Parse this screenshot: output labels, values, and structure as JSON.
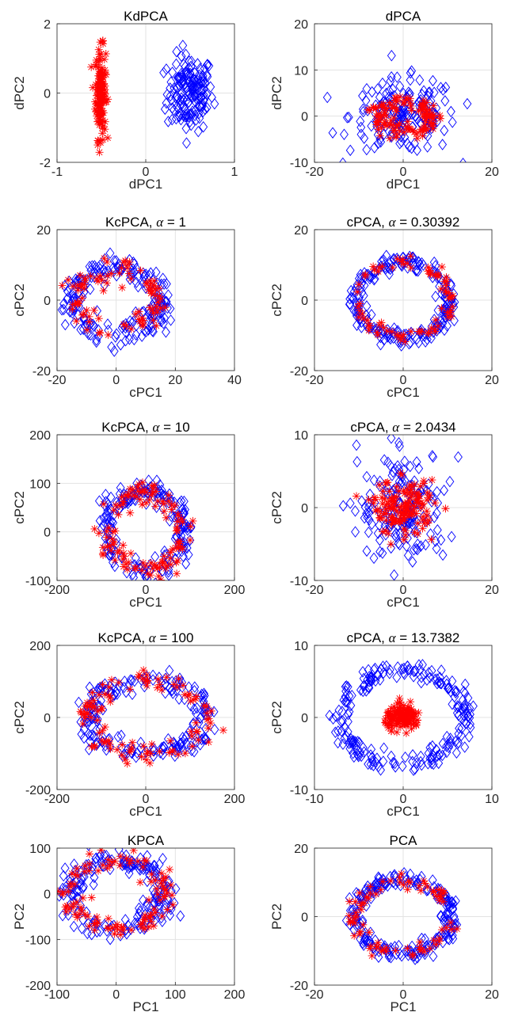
{
  "chart_data": [
    {
      "type": "scatter",
      "title": "KdPCA",
      "title_symbol": "",
      "title_suffix": "",
      "xlabel": "dPC1",
      "ylabel": "dPC2",
      "xlim": [
        -1,
        1
      ],
      "ylim": [
        -2,
        2
      ],
      "xticks": [
        -1,
        0,
        1
      ],
      "yticks": [
        -2,
        0,
        2
      ],
      "grid": true,
      "series": [
        {
          "marker": "diamond",
          "color": "#0000ff",
          "shape": "cluster",
          "cx": 0.5,
          "cy": 0,
          "sx": 0.13,
          "sy": 0.55,
          "n": 160
        },
        {
          "marker": "star",
          "color": "#ff0000",
          "shape": "cluster",
          "cx": -0.51,
          "cy": 0,
          "sx": 0.03,
          "sy": 0.65,
          "n": 140
        }
      ]
    },
    {
      "type": "scatter",
      "title": "dPCA",
      "title_symbol": "",
      "title_suffix": "",
      "xlabel": "dPC1",
      "ylabel": "dPC2",
      "xlim": [
        -20,
        20
      ],
      "ylim": [
        -10,
        20
      ],
      "xticks": [
        -20,
        0,
        20
      ],
      "yticks": [
        -10,
        0,
        10,
        20
      ],
      "grid": true,
      "series": [
        {
          "marker": "diamond",
          "color": "#0000ff",
          "shape": "cluster",
          "cx": 0,
          "cy": 0,
          "sx": 6,
          "sy": 4,
          "n": 180
        },
        {
          "marker": "star",
          "color": "#ff0000",
          "shape": "ring",
          "cx": 0,
          "cy": 0,
          "rx": 6,
          "ry": 3,
          "jit": 1.2,
          "n": 120
        }
      ]
    },
    {
      "type": "scatter",
      "title": "KcPCA, ",
      "title_symbol": "α",
      "title_suffix": " = 1",
      "xlabel": "cPC1",
      "ylabel": "cPC2",
      "xlim": [
        -20,
        40
      ],
      "ylim": [
        -20,
        20
      ],
      "xticks": [
        -20,
        0,
        20,
        40
      ],
      "yticks": [
        -20,
        0,
        20
      ],
      "grid": true,
      "series": [
        {
          "marker": "diamond",
          "color": "#0000ff",
          "shape": "ring",
          "cx": 0,
          "cy": 0,
          "rx": 15,
          "ry": 9,
          "jit": 2.0,
          "n": 200
        },
        {
          "marker": "star",
          "color": "#ff0000",
          "shape": "ring",
          "cx": 0,
          "cy": 0,
          "rx": 14,
          "ry": 8,
          "jit": 2.0,
          "n": 90
        }
      ]
    },
    {
      "type": "scatter",
      "title": "cPCA, ",
      "title_symbol": "α",
      "title_suffix": " = 0.30392",
      "xlabel": "cPC1",
      "ylabel": "cPC2",
      "xlim": [
        -20,
        20
      ],
      "ylim": [
        -20,
        20
      ],
      "xticks": [
        -20,
        0,
        20
      ],
      "yticks": [
        -20,
        0,
        20
      ],
      "grid": true,
      "series": [
        {
          "marker": "diamond",
          "color": "#0000ff",
          "shape": "ring",
          "cx": 0,
          "cy": 0,
          "rx": 10.5,
          "ry": 10.5,
          "jit": 1.0,
          "n": 220
        },
        {
          "marker": "star",
          "color": "#ff0000",
          "shape": "ring",
          "cx": 0,
          "cy": 0,
          "rx": 10.5,
          "ry": 10.5,
          "jit": 1.0,
          "n": 80
        }
      ]
    },
    {
      "type": "scatter",
      "title": "KcPCA, ",
      "title_symbol": "α",
      "title_suffix": " = 10",
      "xlabel": "cPC1",
      "ylabel": "cPC2",
      "xlim": [
        -200,
        200
      ],
      "ylim": [
        -100,
        200
      ],
      "xticks": [
        -200,
        0,
        200
      ],
      "yticks": [
        -100,
        0,
        100,
        200
      ],
      "grid": true,
      "series": [
        {
          "marker": "diamond",
          "color": "#0000ff",
          "shape": "ring",
          "cx": 0,
          "cy": 0,
          "rx": 85,
          "ry": 80,
          "jit": 12,
          "n": 200
        },
        {
          "marker": "star",
          "color": "#ff0000",
          "shape": "ring",
          "cx": 0,
          "cy": 0,
          "rx": 85,
          "ry": 80,
          "jit": 12,
          "n": 120
        }
      ]
    },
    {
      "type": "scatter",
      "title": "cPCA, ",
      "title_symbol": "α",
      "title_suffix": " = 2.0434",
      "xlabel": "cPC1",
      "ylabel": "cPC2",
      "xlim": [
        -20,
        20
      ],
      "ylim": [
        -10,
        10
      ],
      "xticks": [
        -20,
        0,
        20
      ],
      "yticks": [
        -10,
        0,
        10
      ],
      "grid": true,
      "series": [
        {
          "marker": "diamond",
          "color": "#0000ff",
          "shape": "cluster",
          "cx": 0,
          "cy": 0,
          "sx": 5,
          "sy": 4,
          "n": 180
        },
        {
          "marker": "star",
          "color": "#ff0000",
          "shape": "cluster",
          "cx": 0,
          "cy": 0,
          "sx": 3.5,
          "sy": 1.8,
          "n": 140
        }
      ]
    },
    {
      "type": "scatter",
      "title": "KcPCA, ",
      "title_symbol": "α",
      "title_suffix": " = 100",
      "xlabel": "cPC1",
      "ylabel": "cPC2",
      "xlim": [
        -200,
        200
      ],
      "ylim": [
        -200,
        200
      ],
      "xticks": [
        -200,
        0,
        200
      ],
      "yticks": [
        -200,
        0,
        200
      ],
      "grid": true,
      "series": [
        {
          "marker": "diamond",
          "color": "#0000ff",
          "shape": "ring",
          "cx": 0,
          "cy": 0,
          "rx": 130,
          "ry": 100,
          "jit": 15,
          "n": 200
        },
        {
          "marker": "star",
          "color": "#ff0000",
          "shape": "ring",
          "cx": 0,
          "cy": 0,
          "rx": 130,
          "ry": 100,
          "jit": 15,
          "n": 110
        }
      ]
    },
    {
      "type": "scatter",
      "title": "cPCA, ",
      "title_symbol": "α",
      "title_suffix": " = 13.7382",
      "xlabel": "cPC1",
      "ylabel": "cPC2",
      "xlim": [
        -10,
        10
      ],
      "ylim": [
        -10,
        10
      ],
      "xticks": [
        -10,
        0,
        10
      ],
      "yticks": [
        -10,
        0,
        10
      ],
      "grid": true,
      "series": [
        {
          "marker": "diamond",
          "color": "#0000ff",
          "shape": "ring",
          "cx": 0,
          "cy": 0,
          "rx": 7,
          "ry": 6.5,
          "jit": 0.6,
          "n": 220
        },
        {
          "marker": "star",
          "color": "#ff0000",
          "shape": "cluster",
          "cx": 0,
          "cy": 0,
          "sx": 1.0,
          "sy": 0.8,
          "n": 140
        }
      ]
    },
    {
      "type": "scatter",
      "title": "KPCA",
      "title_symbol": "",
      "title_suffix": "",
      "xlabel": "PC1",
      "ylabel": "PC2",
      "xlim": [
        -100,
        200
      ],
      "ylim": [
        -200,
        100
      ],
      "xticks": [
        -100,
        0,
        100,
        200
      ],
      "yticks": [
        -200,
        -100,
        0,
        100
      ],
      "grid": true,
      "series": [
        {
          "marker": "diamond",
          "color": "#0000ff",
          "shape": "ring",
          "cx": 0,
          "cy": 0,
          "rx": 80,
          "ry": 75,
          "jit": 12,
          "n": 200
        },
        {
          "marker": "star",
          "color": "#ff0000",
          "shape": "ring",
          "cx": 0,
          "cy": 0,
          "rx": 80,
          "ry": 75,
          "jit": 12,
          "n": 110
        }
      ]
    },
    {
      "type": "scatter",
      "title": "PCA",
      "title_symbol": "",
      "title_suffix": "",
      "xlabel": "PC1",
      "ylabel": "PC2",
      "xlim": [
        -20,
        20
      ],
      "ylim": [
        -20,
        20
      ],
      "xticks": [
        -20,
        0,
        20
      ],
      "yticks": [
        -20,
        0,
        20
      ],
      "grid": true,
      "series": [
        {
          "marker": "diamond",
          "color": "#0000ff",
          "shape": "ring",
          "cx": 0,
          "cy": 0,
          "rx": 11,
          "ry": 10.5,
          "jit": 1.0,
          "n": 220
        },
        {
          "marker": "star",
          "color": "#ff0000",
          "shape": "ring",
          "cx": 0,
          "cy": 0,
          "rx": 11,
          "ry": 10.5,
          "jit": 1.0,
          "n": 80
        }
      ]
    }
  ]
}
